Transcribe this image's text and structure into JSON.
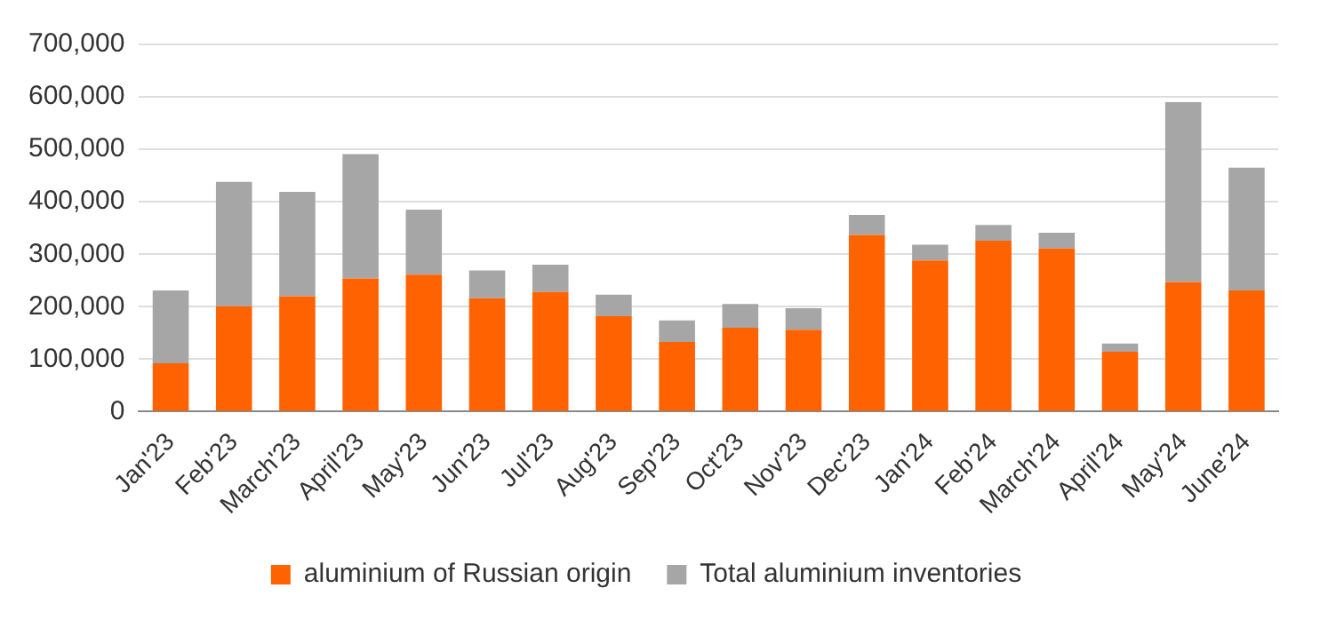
{
  "chart_data": {
    "type": "bar",
    "stacked": true,
    "categories": [
      "Jan'23",
      "Feb'23",
      "March'23",
      "April'23",
      "May'23",
      "Jun'23",
      "Jul'23",
      "Aug'23",
      "Sep'23",
      "Oct'23",
      "Nov'23",
      "Dec'23",
      "Jan'24",
      "Feb'24",
      "March'24",
      "April'24",
      "May'24",
      "June'24"
    ],
    "series": [
      {
        "name": "aluminium of Russian origin",
        "color": "#ff6200",
        "values": [
          92000,
          201000,
          220000,
          254000,
          261000,
          216000,
          228000,
          182000,
          133000,
          160000,
          156000,
          337000,
          288000,
          326000,
          311000,
          114000,
          247000,
          231000
        ]
      },
      {
        "name": "Total aluminium inventories",
        "color": "#a6a6a6",
        "values": [
          139000,
          237000,
          199000,
          237000,
          124000,
          53000,
          52000,
          41000,
          41000,
          45000,
          41000,
          38000,
          30000,
          30000,
          30000,
          16000,
          343000,
          234000
        ]
      }
    ],
    "ylim": [
      0,
      700000
    ],
    "yticks": [
      0,
      {
        "value": 100000,
        "label": "100,000"
      },
      {
        "value": 200000,
        "label": "200,000"
      },
      {
        "value": 300000,
        "label": "300,000"
      },
      {
        "value": 400000,
        "label": "400,000"
      },
      {
        "value": 500000,
        "label": "500,000"
      },
      {
        "value": 600000,
        "label": "600,000"
      },
      {
        "value": 700000,
        "label": "700,000"
      }
    ],
    "grid": "y",
    "legend": "bottom"
  }
}
